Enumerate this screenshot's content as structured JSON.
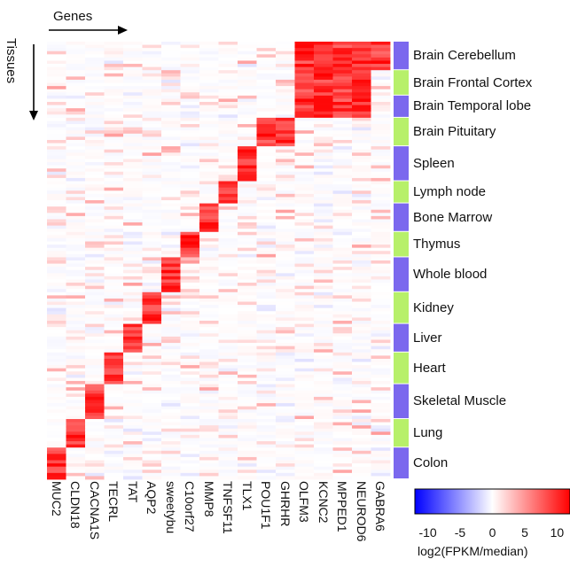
{
  "chart_data": {
    "type": "heatmap",
    "axis_labels": {
      "columns": "Genes",
      "rows": "Tissues"
    },
    "genes": [
      "MUC2",
      "CLDN18",
      "CACNA1S",
      "TECRL",
      "TAT",
      "AQP2",
      "sweetybu",
      "C10orf27",
      "MMP8",
      "TNFSF11",
      "TLX1",
      "POU1F1",
      "GHRHR",
      "OLFM3",
      "KCNC2",
      "MPPED1",
      "NEUROD6",
      "GABRA6"
    ],
    "tissues": [
      {
        "name": "Brain Cerebellum",
        "samples": 9,
        "color": "#7b68ee"
      },
      {
        "name": "Brain Frontal Cortex",
        "samples": 8,
        "color": "#b7f06a"
      },
      {
        "name": "Brain Temporal lobe",
        "samples": 7,
        "color": "#7b68ee"
      },
      {
        "name": "Brain Pituitary",
        "samples": 9,
        "color": "#b7f06a"
      },
      {
        "name": "Spleen",
        "samples": 11,
        "color": "#7b68ee"
      },
      {
        "name": "Lymph node",
        "samples": 7,
        "color": "#b7f06a"
      },
      {
        "name": "Bone Marrow",
        "samples": 9,
        "color": "#7b68ee"
      },
      {
        "name": "Thymus",
        "samples": 8,
        "color": "#b7f06a"
      },
      {
        "name": "Whole blood",
        "samples": 11,
        "color": "#7b68ee"
      },
      {
        "name": "Kidney",
        "samples": 10,
        "color": "#b7f06a"
      },
      {
        "name": "Liver",
        "samples": 9,
        "color": "#7b68ee"
      },
      {
        "name": "Heart",
        "samples": 10,
        "color": "#b7f06a"
      },
      {
        "name": "Skeletal Muscle",
        "samples": 11,
        "color": "#7b68ee"
      },
      {
        "name": "Lung",
        "samples": 9,
        "color": "#b7f06a"
      },
      {
        "name": "Colon",
        "samples": 10,
        "color": "#7b68ee"
      }
    ],
    "high_expression": [
      {
        "tissue": "Brain Cerebellum",
        "genes": [
          "OLFM3",
          "KCNC2",
          "MPPED1",
          "NEUROD6",
          "GABRA6"
        ]
      },
      {
        "tissue": "Brain Frontal Cortex",
        "genes": [
          "OLFM3",
          "KCNC2",
          "MPPED1",
          "NEUROD6"
        ]
      },
      {
        "tissue": "Brain Temporal lobe",
        "genes": [
          "OLFM3",
          "KCNC2",
          "MPPED1",
          "NEUROD6"
        ]
      },
      {
        "tissue": "Brain Pituitary",
        "genes": [
          "POU1F1",
          "GHRHR"
        ]
      },
      {
        "tissue": "Spleen",
        "genes": [
          "TLX1"
        ]
      },
      {
        "tissue": "Lymph node",
        "genes": [
          "TNFSF11"
        ]
      },
      {
        "tissue": "Bone Marrow",
        "genes": [
          "MMP8"
        ]
      },
      {
        "tissue": "Thymus",
        "genes": [
          "C10orf27"
        ]
      },
      {
        "tissue": "Whole blood",
        "genes": [
          "sweetybu"
        ]
      },
      {
        "tissue": "Kidney",
        "genes": [
          "AQP2"
        ]
      },
      {
        "tissue": "Liver",
        "genes": [
          "TAT"
        ]
      },
      {
        "tissue": "Heart",
        "genes": [
          "TECRL"
        ]
      },
      {
        "tissue": "Skeletal Muscle",
        "genes": [
          "CACNA1S"
        ]
      },
      {
        "tissue": "Lung",
        "genes": [
          "CLDN18"
        ]
      },
      {
        "tissue": "Colon",
        "genes": [
          "MUC2"
        ]
      }
    ],
    "colorbar": {
      "min": -12,
      "max": 12,
      "ticks": [
        -10,
        -5,
        0,
        5,
        10
      ],
      "tick_labels": [
        "-10",
        "-5",
        "0",
        "5",
        "10"
      ],
      "title": "log2(FPKM/median)",
      "colors": {
        "low": "#0000ff",
        "mid": "#ffffff",
        "high": "#ff0000"
      }
    }
  }
}
